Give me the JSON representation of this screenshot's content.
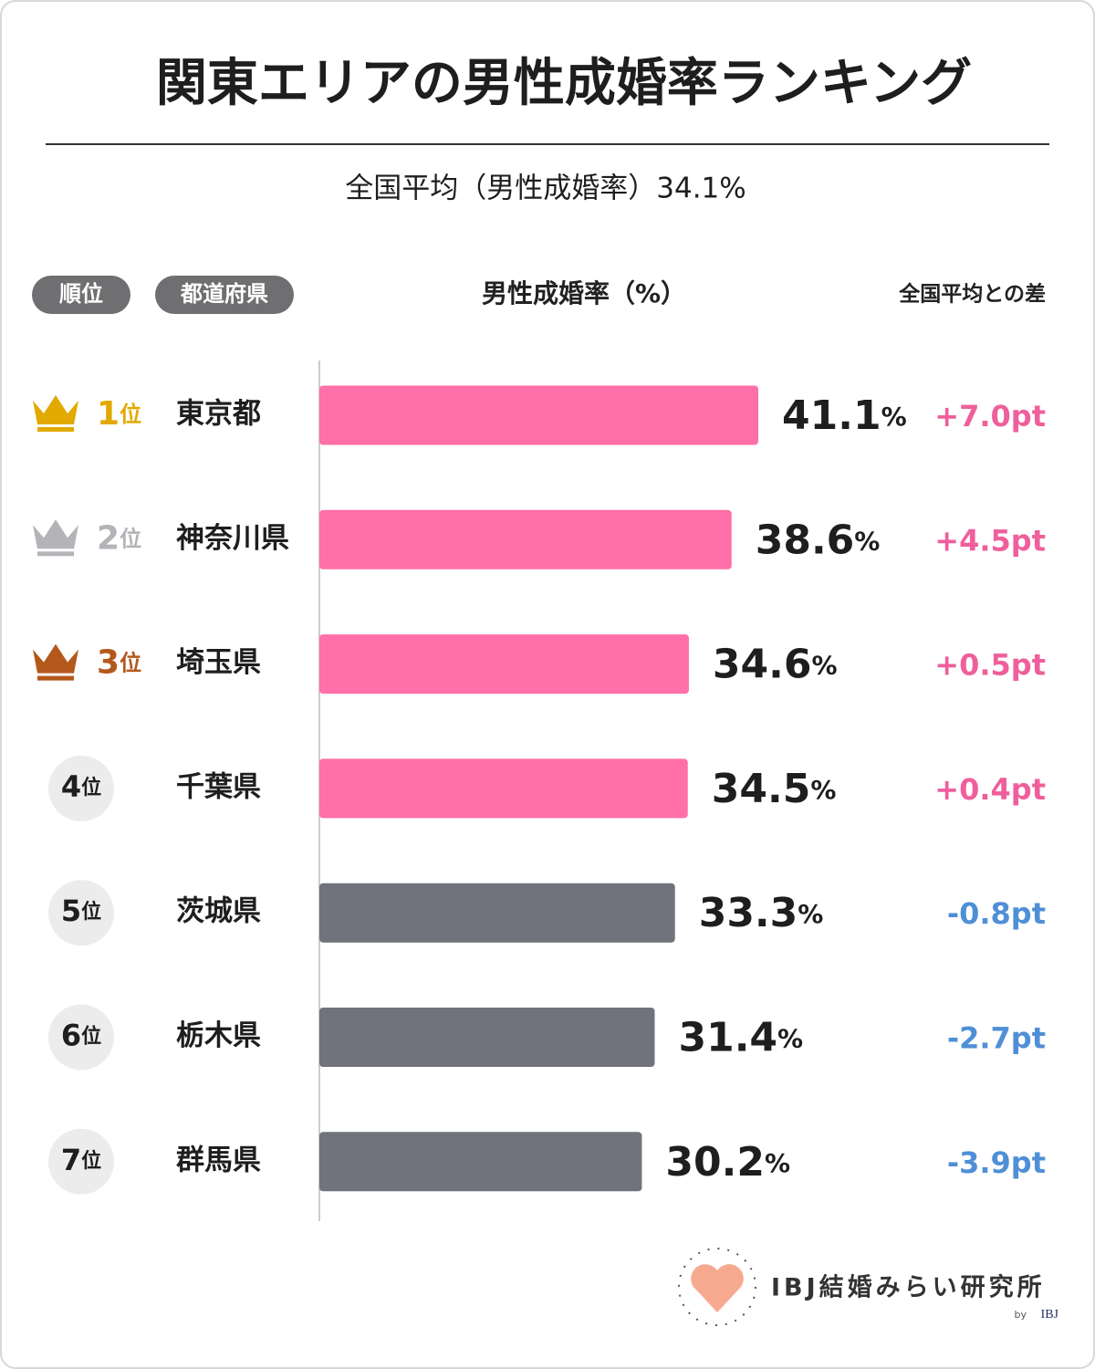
{
  "header": {
    "title": "関東エリアの男性成婚率ランキング",
    "subtitle": "全国平均（男性成婚率）34.1%"
  },
  "columns": [
    "順位",
    "都道府県",
    "男性成婚率（%）",
    "全国平均との差"
  ],
  "chart_data": {
    "type": "bar",
    "orientation": "horizontal",
    "categories": [
      "東京都",
      "神奈川県",
      "埼玉県",
      "千葉県",
      "茨城県",
      "栃木県",
      "群馬県"
    ],
    "ranks": [
      "1",
      "2",
      "3",
      "4",
      "5",
      "6",
      "7"
    ],
    "rank_suffix": "位",
    "values": [
      41.1,
      38.6,
      34.6,
      34.5,
      33.3,
      31.4,
      30.2
    ],
    "value_labels": [
      "41.1%",
      "38.6%",
      "34.6%",
      "34.5%",
      "33.3%",
      "31.4%",
      "30.2%"
    ],
    "diff_labels": [
      "+7.0pt",
      "+4.5pt",
      "+0.5pt",
      "+0.4pt",
      "-0.8pt",
      "-2.7pt",
      "-3.9pt"
    ],
    "colors": [
      "#ff6fa8",
      "#ff6fa8",
      "#ff6fa8",
      "#ff6fa8",
      "#71737c",
      "#71737c",
      "#71737c"
    ],
    "diff_colors": [
      "#ef5f9c",
      "#ef5f9c",
      "#ef5f9c",
      "#ef5f9c",
      "#4f8fd6",
      "#4f8fd6",
      "#4f8fd6"
    ]
  },
  "footer": {
    "brand": "IBJ結婚みらい研究所",
    "by": "by",
    "by_brand": "IBJ"
  }
}
